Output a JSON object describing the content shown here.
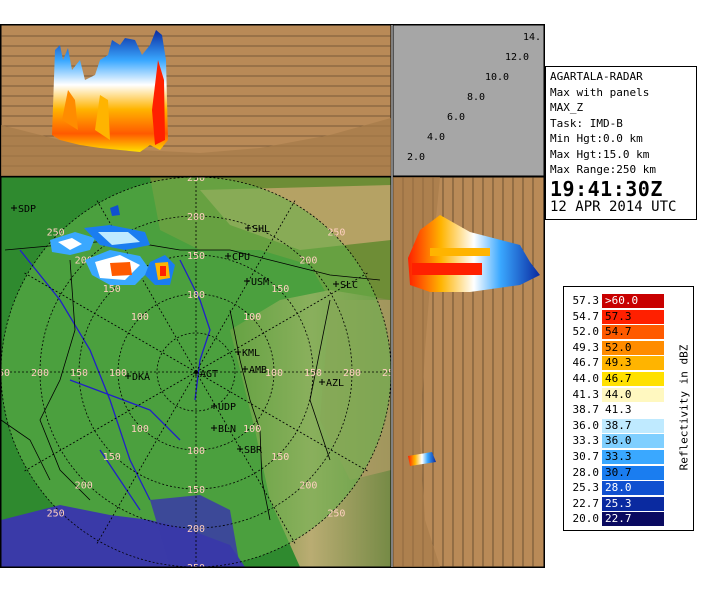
{
  "radar": {
    "station": "AGARTALA-RADAR",
    "product": "Max with panels",
    "parameter": "MAX_Z",
    "task": "Task: IMD-B",
    "min_height": "Min Hgt:0.0 km",
    "max_height": "Max Hgt:15.0 km",
    "max_range": "Max Range:250 km",
    "time": "19:41:30Z",
    "date": "12 APR 2014 UTC"
  },
  "height_axis_labels": [
    "2.0",
    "4.0",
    "6.0",
    "8.0",
    "10.0",
    "12.0",
    "14."
  ],
  "range_rings": [
    "100",
    "150",
    "200",
    "250"
  ],
  "places": [
    {
      "label": "SDP"
    },
    {
      "label": "SHL"
    },
    {
      "label": "CPU"
    },
    {
      "label": "USM"
    },
    {
      "label": "SLC"
    },
    {
      "label": "KML"
    },
    {
      "label": "AMB"
    },
    {
      "label": "AGT"
    },
    {
      "label": "DKA"
    },
    {
      "label": "UDP"
    },
    {
      "label": "AZL"
    },
    {
      "label": "BLN"
    },
    {
      "label": "SBR"
    }
  ],
  "colors": {
    "panel_bg": "#b98a57",
    "panel_gray": "#a6a6a6",
    "map_green": "#2f8a2f",
    "range_disk": "#63b34a",
    "sea": "#3a3aa8"
  },
  "legend": {
    "title": "Reflectivity in dBZ",
    "rows": [
      {
        "low": "57.3",
        "high": ">60.0",
        "color": "#c80000"
      },
      {
        "low": "54.7",
        "high": "57.3",
        "color": "#ff2000"
      },
      {
        "low": "52.0",
        "high": "54.7",
        "color": "#ff5a00"
      },
      {
        "low": "49.3",
        "high": "52.0",
        "color": "#ff8c00"
      },
      {
        "low": "46.7",
        "high": "49.3",
        "color": "#ffb400"
      },
      {
        "low": "44.0",
        "high": "46.7",
        "color": "#ffe000"
      },
      {
        "low": "41.3",
        "high": "44.0",
        "color": "#fff8c0"
      },
      {
        "low": "38.7",
        "high": "41.3",
        "color": "#ffffff"
      },
      {
        "low": "36.0",
        "high": "38.7",
        "color": "#bfeaff"
      },
      {
        "low": "33.3",
        "high": "36.0",
        "color": "#7fcfff"
      },
      {
        "low": "30.7",
        "high": "33.3",
        "color": "#3aa8ff"
      },
      {
        "low": "28.0",
        "high": "30.7",
        "color": "#1a7df0"
      },
      {
        "low": "25.3",
        "high": "28.0",
        "color": "#1050d0"
      },
      {
        "low": "22.7",
        "high": "25.3",
        "color": "#0a2aa0"
      },
      {
        "low": "20.0",
        "high": "22.7",
        "color": "#0a0a60"
      }
    ]
  }
}
